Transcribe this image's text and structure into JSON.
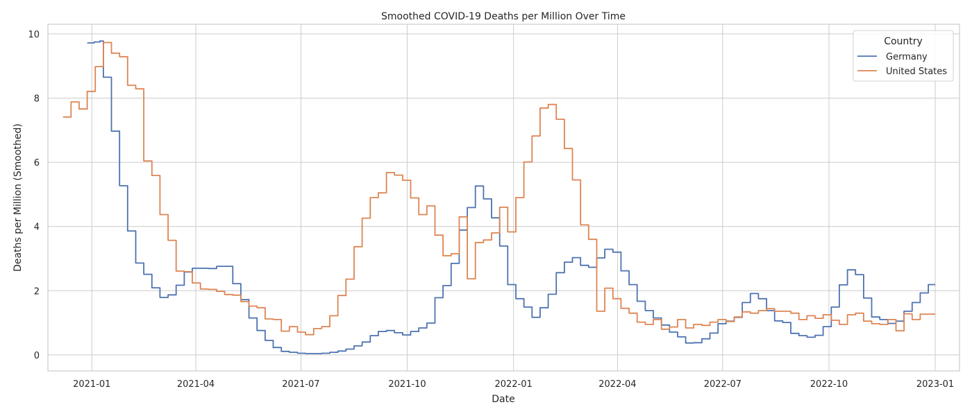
{
  "chart_data": {
    "type": "line",
    "title": "Smoothed COVID-19 Deaths per Million Over Time",
    "xlabel": "Date",
    "ylabel": "Deaths per Million (Smoothed)",
    "xlim": [
      "2020-11-24",
      "2023-01-22"
    ],
    "ylim": [
      -0.5,
      10.3
    ],
    "x_ticks": [
      "2021-01",
      "2021-04",
      "2021-07",
      "2021-10",
      "2022-01",
      "2022-04",
      "2022-07",
      "2022-10",
      "2023-01"
    ],
    "y_ticks": [
      0,
      2,
      4,
      6,
      8,
      10
    ],
    "grid": true,
    "legend": {
      "title": "Country",
      "position": "top-right"
    },
    "series": [
      {
        "name": "Germany",
        "color": "#4c72b0",
        "step": "post",
        "points": [
          [
            "2020-12-28",
            9.72
          ],
          [
            "2021-01-03",
            9.75
          ],
          [
            "2021-01-08",
            9.78
          ],
          [
            "2021-01-11",
            8.65
          ],
          [
            "2021-01-18",
            6.97
          ],
          [
            "2021-01-25",
            5.27
          ],
          [
            "2021-02-01",
            3.86
          ],
          [
            "2021-02-08",
            2.86
          ],
          [
            "2021-02-15",
            2.51
          ],
          [
            "2021-02-22",
            2.09
          ],
          [
            "2021-03-01",
            1.79
          ],
          [
            "2021-03-08",
            1.87
          ],
          [
            "2021-03-15",
            2.17
          ],
          [
            "2021-03-22",
            2.58
          ],
          [
            "2021-03-29",
            2.7
          ],
          [
            "2021-04-05",
            2.7
          ],
          [
            "2021-04-12",
            2.69
          ],
          [
            "2021-04-19",
            2.76
          ],
          [
            "2021-04-26",
            2.76
          ],
          [
            "2021-05-03",
            2.22
          ],
          [
            "2021-05-10",
            1.72
          ],
          [
            "2021-05-17",
            1.15
          ],
          [
            "2021-05-24",
            0.76
          ],
          [
            "2021-05-31",
            0.45
          ],
          [
            "2021-06-07",
            0.23
          ],
          [
            "2021-06-14",
            0.11
          ],
          [
            "2021-06-21",
            0.08
          ],
          [
            "2021-06-28",
            0.05
          ],
          [
            "2021-07-05",
            0.04
          ],
          [
            "2021-07-12",
            0.04
          ],
          [
            "2021-07-19",
            0.05
          ],
          [
            "2021-07-26",
            0.08
          ],
          [
            "2021-08-02",
            0.12
          ],
          [
            "2021-08-09",
            0.18
          ],
          [
            "2021-08-16",
            0.28
          ],
          [
            "2021-08-23",
            0.4
          ],
          [
            "2021-08-30",
            0.6
          ],
          [
            "2021-09-06",
            0.73
          ],
          [
            "2021-09-13",
            0.76
          ],
          [
            "2021-09-20",
            0.69
          ],
          [
            "2021-09-27",
            0.62
          ],
          [
            "2021-10-04",
            0.73
          ],
          [
            "2021-10-11",
            0.84
          ],
          [
            "2021-10-18",
            0.99
          ],
          [
            "2021-10-25",
            1.78
          ],
          [
            "2021-11-01",
            2.16
          ],
          [
            "2021-11-08",
            2.85
          ],
          [
            "2021-11-15",
            3.89
          ],
          [
            "2021-11-22",
            4.59
          ],
          [
            "2021-11-29",
            5.26
          ],
          [
            "2021-12-06",
            4.86
          ],
          [
            "2021-12-13",
            4.27
          ],
          [
            "2021-12-20",
            3.39
          ],
          [
            "2021-12-27",
            2.19
          ],
          [
            "2022-01-03",
            1.75
          ],
          [
            "2022-01-10",
            1.49
          ],
          [
            "2022-01-17",
            1.17
          ],
          [
            "2022-01-24",
            1.47
          ],
          [
            "2022-01-31",
            1.89
          ],
          [
            "2022-02-07",
            2.56
          ],
          [
            "2022-02-14",
            2.89
          ],
          [
            "2022-02-21",
            3.03
          ],
          [
            "2022-02-28",
            2.79
          ],
          [
            "2022-03-07",
            2.73
          ],
          [
            "2022-03-14",
            3.02
          ],
          [
            "2022-03-21",
            3.29
          ],
          [
            "2022-03-28",
            3.2
          ],
          [
            "2022-04-04",
            2.62
          ],
          [
            "2022-04-11",
            2.19
          ],
          [
            "2022-04-18",
            1.67
          ],
          [
            "2022-04-25",
            1.38
          ],
          [
            "2022-05-02",
            1.15
          ],
          [
            "2022-05-09",
            0.93
          ],
          [
            "2022-05-16",
            0.71
          ],
          [
            "2022-05-23",
            0.56
          ],
          [
            "2022-05-30",
            0.37
          ],
          [
            "2022-06-06",
            0.38
          ],
          [
            "2022-06-13",
            0.5
          ],
          [
            "2022-06-20",
            0.68
          ],
          [
            "2022-06-27",
            0.97
          ],
          [
            "2022-07-04",
            1.05
          ],
          [
            "2022-07-11",
            1.17
          ],
          [
            "2022-07-18",
            1.63
          ],
          [
            "2022-07-25",
            1.91
          ],
          [
            "2022-08-01",
            1.75
          ],
          [
            "2022-08-08",
            1.38
          ],
          [
            "2022-08-15",
            1.06
          ],
          [
            "2022-08-22",
            1.01
          ],
          [
            "2022-08-29",
            0.67
          ],
          [
            "2022-09-05",
            0.6
          ],
          [
            "2022-09-12",
            0.55
          ],
          [
            "2022-09-19",
            0.61
          ],
          [
            "2022-09-26",
            0.88
          ],
          [
            "2022-10-03",
            1.49
          ],
          [
            "2022-10-10",
            2.18
          ],
          [
            "2022-10-17",
            2.65
          ],
          [
            "2022-10-24",
            2.5
          ],
          [
            "2022-10-31",
            1.77
          ],
          [
            "2022-11-07",
            1.18
          ],
          [
            "2022-11-14",
            1.1
          ],
          [
            "2022-11-21",
            0.98
          ],
          [
            "2022-11-28",
            1.05
          ],
          [
            "2022-12-05",
            1.36
          ],
          [
            "2022-12-12",
            1.63
          ],
          [
            "2022-12-19",
            1.93
          ],
          [
            "2022-12-26",
            2.19
          ],
          [
            "2023-01-01",
            2.19
          ]
        ]
      },
      {
        "name": "United States",
        "color": "#dd8452",
        "step": "post",
        "points": [
          [
            "2020-12-07",
            7.41
          ],
          [
            "2020-12-14",
            7.88
          ],
          [
            "2020-12-21",
            7.66
          ],
          [
            "2020-12-28",
            8.21
          ],
          [
            "2021-01-04",
            8.98
          ],
          [
            "2021-01-11",
            9.73
          ],
          [
            "2021-01-18",
            9.4
          ],
          [
            "2021-01-25",
            9.29
          ],
          [
            "2021-02-01",
            8.4
          ],
          [
            "2021-02-08",
            8.29
          ],
          [
            "2021-02-15",
            6.04
          ],
          [
            "2021-02-22",
            5.59
          ],
          [
            "2021-03-01",
            4.37
          ],
          [
            "2021-03-08",
            3.57
          ],
          [
            "2021-03-15",
            2.61
          ],
          [
            "2021-03-22",
            2.59
          ],
          [
            "2021-03-29",
            2.24
          ],
          [
            "2021-04-05",
            2.05
          ],
          [
            "2021-04-12",
            2.04
          ],
          [
            "2021-04-19",
            1.98
          ],
          [
            "2021-04-26",
            1.88
          ],
          [
            "2021-05-03",
            1.86
          ],
          [
            "2021-05-10",
            1.66
          ],
          [
            "2021-05-17",
            1.52
          ],
          [
            "2021-05-24",
            1.47
          ],
          [
            "2021-05-31",
            1.12
          ],
          [
            "2021-06-07",
            1.1
          ],
          [
            "2021-06-14",
            0.74
          ],
          [
            "2021-06-21",
            0.88
          ],
          [
            "2021-06-28",
            0.71
          ],
          [
            "2021-07-05",
            0.63
          ],
          [
            "2021-07-12",
            0.82
          ],
          [
            "2021-07-19",
            0.88
          ],
          [
            "2021-07-26",
            1.22
          ],
          [
            "2021-08-02",
            1.85
          ],
          [
            "2021-08-09",
            2.36
          ],
          [
            "2021-08-16",
            3.37
          ],
          [
            "2021-08-23",
            4.26
          ],
          [
            "2021-08-30",
            4.9
          ],
          [
            "2021-09-06",
            5.05
          ],
          [
            "2021-09-13",
            5.68
          ],
          [
            "2021-09-20",
            5.6
          ],
          [
            "2021-09-27",
            5.44
          ],
          [
            "2021-10-04",
            4.89
          ],
          [
            "2021-10-11",
            4.37
          ],
          [
            "2021-10-18",
            4.64
          ],
          [
            "2021-10-25",
            3.73
          ],
          [
            "2021-11-01",
            3.09
          ],
          [
            "2021-11-08",
            3.15
          ],
          [
            "2021-11-15",
            4.3
          ],
          [
            "2021-11-22",
            2.37
          ],
          [
            "2021-11-29",
            3.5
          ],
          [
            "2021-12-06",
            3.58
          ],
          [
            "2021-12-13",
            3.8
          ],
          [
            "2021-12-20",
            4.6
          ],
          [
            "2021-12-27",
            3.83
          ],
          [
            "2022-01-03",
            4.9
          ],
          [
            "2022-01-10",
            6.01
          ],
          [
            "2022-01-17",
            6.82
          ],
          [
            "2022-01-24",
            7.69
          ],
          [
            "2022-01-31",
            7.8
          ],
          [
            "2022-02-07",
            7.34
          ],
          [
            "2022-02-14",
            6.43
          ],
          [
            "2022-02-21",
            5.45
          ],
          [
            "2022-02-28",
            4.05
          ],
          [
            "2022-03-07",
            3.6
          ],
          [
            "2022-03-14",
            1.36
          ],
          [
            "2022-03-21",
            2.08
          ],
          [
            "2022-03-28",
            1.75
          ],
          [
            "2022-04-04",
            1.45
          ],
          [
            "2022-04-11",
            1.3
          ],
          [
            "2022-04-18",
            1.02
          ],
          [
            "2022-04-25",
            0.95
          ],
          [
            "2022-05-02",
            1.1
          ],
          [
            "2022-05-09",
            0.8
          ],
          [
            "2022-05-16",
            0.87
          ],
          [
            "2022-05-23",
            1.1
          ],
          [
            "2022-05-30",
            0.84
          ],
          [
            "2022-06-06",
            0.95
          ],
          [
            "2022-06-13",
            0.92
          ],
          [
            "2022-06-20",
            1.02
          ],
          [
            "2022-06-27",
            1.1
          ],
          [
            "2022-07-04",
            1.04
          ],
          [
            "2022-07-11",
            1.18
          ],
          [
            "2022-07-18",
            1.34
          ],
          [
            "2022-07-25",
            1.3
          ],
          [
            "2022-08-01",
            1.38
          ],
          [
            "2022-08-08",
            1.44
          ],
          [
            "2022-08-15",
            1.36
          ],
          [
            "2022-08-22",
            1.36
          ],
          [
            "2022-08-29",
            1.3
          ],
          [
            "2022-09-05",
            1.1
          ],
          [
            "2022-09-12",
            1.22
          ],
          [
            "2022-09-19",
            1.14
          ],
          [
            "2022-09-26",
            1.25
          ],
          [
            "2022-10-03",
            1.08
          ],
          [
            "2022-10-10",
            0.95
          ],
          [
            "2022-10-17",
            1.25
          ],
          [
            "2022-10-24",
            1.3
          ],
          [
            "2022-10-31",
            1.05
          ],
          [
            "2022-11-07",
            0.97
          ],
          [
            "2022-11-14",
            0.95
          ],
          [
            "2022-11-21",
            1.1
          ],
          [
            "2022-11-28",
            0.75
          ],
          [
            "2022-12-05",
            1.28
          ],
          [
            "2022-12-12",
            1.1
          ],
          [
            "2022-12-19",
            1.27
          ],
          [
            "2023-01-01",
            1.27
          ]
        ]
      }
    ]
  }
}
